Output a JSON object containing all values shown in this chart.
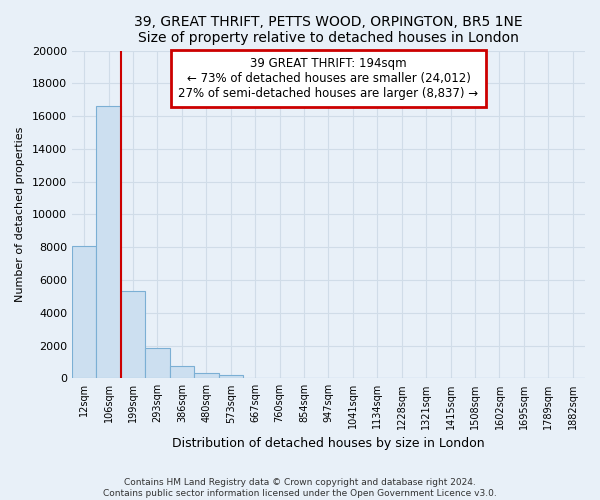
{
  "title_line1": "39, GREAT THRIFT, PETTS WOOD, ORPINGTON, BR5 1NE",
  "title_line2": "Size of property relative to detached houses in London",
  "xlabel": "Distribution of detached houses by size in London",
  "ylabel": "Number of detached properties",
  "bar_labels": [
    "12sqm",
    "106sqm",
    "199sqm",
    "293sqm",
    "386sqm",
    "480sqm",
    "573sqm",
    "667sqm",
    "760sqm",
    "854sqm",
    "947sqm",
    "1041sqm",
    "1134sqm",
    "1228sqm",
    "1321sqm",
    "1415sqm",
    "1508sqm",
    "1602sqm",
    "1695sqm",
    "1789sqm",
    "1882sqm"
  ],
  "bar_values": [
    8100,
    16600,
    5300,
    1850,
    750,
    300,
    200,
    0,
    0,
    0,
    0,
    0,
    0,
    0,
    0,
    0,
    0,
    0,
    0,
    0,
    0
  ],
  "bar_face_color": "#ccdff0",
  "bar_edge_color": "#7bafd4",
  "property_line_index": 2,
  "annotation_title": "39 GREAT THRIFT: 194sqm",
  "annotation_line1": "← 73% of detached houses are smaller (24,012)",
  "annotation_line2": "27% of semi-detached houses are larger (8,837) →",
  "annotation_box_color": "#ffffff",
  "annotation_box_edge": "#cc0000",
  "property_line_color": "#cc0000",
  "ylim": [
    0,
    20000
  ],
  "yticks": [
    0,
    2000,
    4000,
    6000,
    8000,
    10000,
    12000,
    14000,
    16000,
    18000,
    20000
  ],
  "grid_color": "#d0dce8",
  "background_color": "#e8f0f8",
  "plot_bg_color": "#e8f0f8",
  "footer_line1": "Contains HM Land Registry data © Crown copyright and database right 2024.",
  "footer_line2": "Contains public sector information licensed under the Open Government Licence v3.0."
}
